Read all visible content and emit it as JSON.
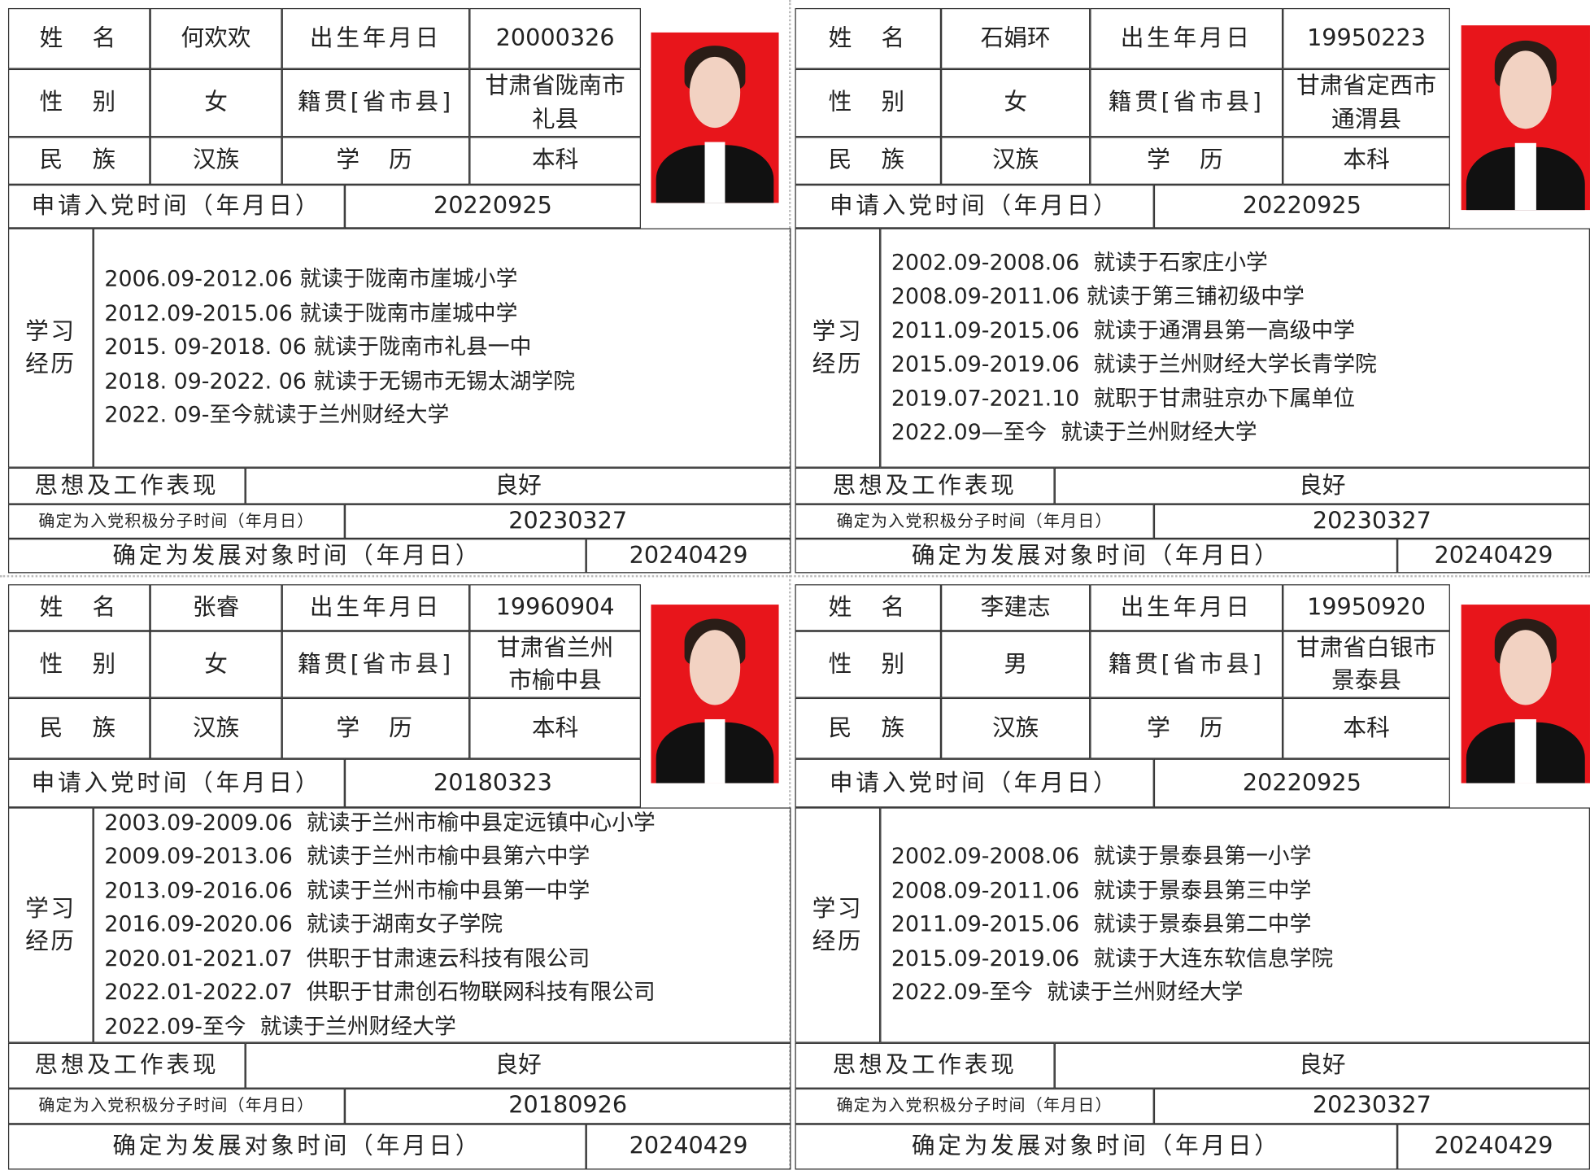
{
  "labels": {
    "name": "姓　名",
    "birth": "出生年月日",
    "gender": "性　别",
    "origin": "籍贯[省市县]",
    "ethnicity": "民　族",
    "education": "学　历",
    "apply": "申请入党时间（年月日）",
    "history": "学习经历",
    "performance": "思想及工作表现",
    "activist": "确定为入党积极分子时间（年月日）",
    "candidate": "确定为发展对象时间（年月日）"
  },
  "cards": [
    {
      "name": "何欢欢",
      "birth": "20000326",
      "gender": "女",
      "origin": [
        "甘肃省陇南市",
        "礼县"
      ],
      "ethnicity": "汉族",
      "education": "本科",
      "apply_date": "20220925",
      "history": [
        "2006.09-2012.06 就读于陇南市崖城小学",
        "2012.09-2015.06 就读于陇南市崖城中学",
        "2015. 09-2018. 06 就读于陇南市礼县一中",
        "2018. 09-2022. 06 就读于无锡市无锡太湖学院",
        "2022. 09-至今就读于兰州财经大学"
      ],
      "performance": "良好",
      "activist_date": "20230327",
      "candidate_date": "20240429"
    },
    {
      "name": "石娟环",
      "birth": "19950223",
      "gender": "女",
      "origin": [
        "甘肃省定西市",
        "通渭县"
      ],
      "ethnicity": "汉族",
      "education": "本科",
      "apply_date": "20220925",
      "history": [
        "2002.09-2008.06  就读于石家庄小学",
        "2008.09-2011.06 就读于第三铺初级中学",
        "2011.09-2015.06  就读于通渭县第一高级中学",
        "2015.09-2019.06  就读于兰州财经大学长青学院",
        "2019.07-2021.10  就职于甘肃驻京办下属单位",
        "2022.09—至今  就读于兰州财经大学"
      ],
      "performance": "良好",
      "activist_date": "20230327",
      "candidate_date": "20240429"
    },
    {
      "name": "张睿",
      "birth": "19960904",
      "gender": "女",
      "origin": [
        "甘肃省兰州",
        "市榆中县"
      ],
      "ethnicity": "汉族",
      "education": "本科",
      "apply_date": "20180323",
      "history": [
        "2003.09-2009.06  就读于兰州市榆中县定远镇中心小学",
        "2009.09-2013.06  就读于兰州市榆中县第六中学",
        "2013.09-2016.06  就读于兰州市榆中县第一中学",
        "2016.09-2020.06  就读于湖南女子学院",
        "2020.01-2021.07  供职于甘肃速云科技有限公司",
        "2022.01-2022.07  供职于甘肃创石物联网科技有限公司",
        "2022.09-至今  就读于兰州财经大学"
      ],
      "performance": "良好",
      "activist_date": "20180926",
      "candidate_date": "20240429"
    },
    {
      "name": "李建志",
      "birth": "19950920",
      "gender": "男",
      "origin": [
        "甘肃省白银市",
        "景泰县"
      ],
      "ethnicity": "汉族",
      "education": "本科",
      "apply_date": "20220925",
      "history": [
        "2002.09-2008.06  就读于景泰县第一小学",
        "2008.09-2011.06  就读于景泰县第三中学",
        "2011.09-2015.06  就读于景泰县第二中学",
        "2015.09-2019.06  就读于大连东软信息学院",
        "2022.09-至今  就读于兰州财经大学"
      ],
      "performance": "良好",
      "activist_date": "20230327",
      "candidate_date": "20240429"
    }
  ]
}
